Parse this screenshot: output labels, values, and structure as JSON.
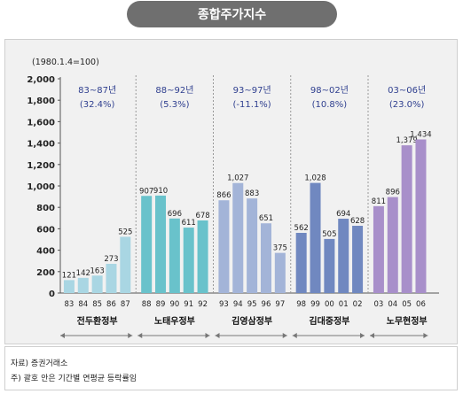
{
  "header": {
    "title": "종합주가지수"
  },
  "footnotes": {
    "source": "자료) 증권거래소",
    "note": "주) 괄호 안은 기간별 연평균 등락률임"
  },
  "chart_data": {
    "type": "bar",
    "unit_label": "(1980.1.4=100)",
    "ylim": [
      0,
      2000
    ],
    "yticks": [
      0,
      200,
      400,
      600,
      800,
      "1,000",
      "1,200",
      "1,400",
      "1,600",
      "1,800",
      "2,000"
    ],
    "grid": false,
    "groups": [
      {
        "name": "전두환정부",
        "period": "83~87년",
        "rate": "(32.4%)",
        "color": "#a9d6e3",
        "bars": [
          {
            "x": "83",
            "value": 121,
            "label": "121"
          },
          {
            "x": "84",
            "value": 142,
            "label": "142"
          },
          {
            "x": "85",
            "value": 163,
            "label": "163"
          },
          {
            "x": "86",
            "value": 273,
            "label": "273"
          },
          {
            "x": "87",
            "value": 525,
            "label": "525"
          }
        ]
      },
      {
        "name": "노태우정부",
        "period": "88~92년",
        "rate": "(5.3%)",
        "color": "#69c2cb",
        "bars": [
          {
            "x": "88",
            "value": 907,
            "label": "907"
          },
          {
            "x": "89",
            "value": 910,
            "label": "910"
          },
          {
            "x": "90",
            "value": 696,
            "label": "696"
          },
          {
            "x": "91",
            "value": 611,
            "label": "611"
          },
          {
            "x": "92",
            "value": 678,
            "label": "678"
          }
        ]
      },
      {
        "name": "김영삼정부",
        "period": "93~97년",
        "rate": "(-11.1%)",
        "color": "#a3b4d8",
        "bars": [
          {
            "x": "93",
            "value": 866,
            "label": "866"
          },
          {
            "x": "94",
            "value": 1027,
            "label": "1,027"
          },
          {
            "x": "95",
            "value": 883,
            "label": "883"
          },
          {
            "x": "96",
            "value": 651,
            "label": "651"
          },
          {
            "x": "97",
            "value": 375,
            "label": "375"
          }
        ]
      },
      {
        "name": "김대중정부",
        "period": "98~02년",
        "rate": "(10.8%)",
        "color": "#7088c0",
        "bars": [
          {
            "x": "98",
            "value": 562,
            "label": "562"
          },
          {
            "x": "99",
            "value": 1028,
            "label": "1,028"
          },
          {
            "x": "00",
            "value": 505,
            "label": "505"
          },
          {
            "x": "01",
            "value": 694,
            "label": "694"
          },
          {
            "x": "02",
            "value": 628,
            "label": "628"
          }
        ]
      },
      {
        "name": "노무현정부",
        "period": "03~06년",
        "rate": "(23.0%)",
        "color": "#a88fca",
        "bars": [
          {
            "x": "03",
            "value": 811,
            "label": "811"
          },
          {
            "x": "04",
            "value": 896,
            "label": "896"
          },
          {
            "x": "05",
            "value": 1379,
            "label": "1,379"
          },
          {
            "x": "06",
            "value": 1434,
            "label": "1,434"
          }
        ]
      }
    ]
  }
}
